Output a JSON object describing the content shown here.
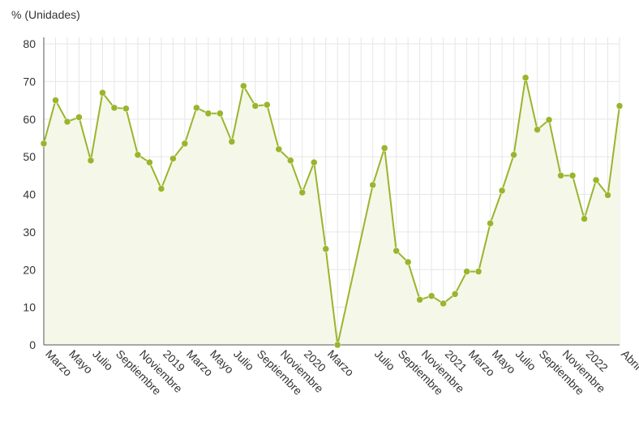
{
  "chart_data": {
    "type": "area",
    "title": "",
    "ylabel": "% (Unidades)",
    "xlabel": "",
    "ylim": [
      0,
      80
    ],
    "yticks": [
      0,
      10,
      20,
      30,
      40,
      50,
      60,
      70,
      80
    ],
    "grid": true,
    "legend": "none",
    "colors": {
      "line": "#99b52c",
      "point": "#99b52c",
      "fill": "#f5f7e9",
      "grid": "#e6e6e6",
      "axis": "#555555"
    },
    "x_ticks": [
      "Marzo",
      "Mayo",
      "Julio",
      "Septiembre",
      "Noviembre",
      "2019",
      "Marzo",
      "Mayo",
      "Julio",
      "Septiembre",
      "Noviembre",
      "2020",
      "Marzo",
      "Julio",
      "Septiembre",
      "Noviembre",
      "2021",
      "Marzo",
      "Mayo",
      "Julio",
      "Septiembre",
      "Noviembre",
      "2022",
      "Abril"
    ],
    "x_tick_positions": [
      0.5,
      2.5,
      4.5,
      6.5,
      8.5,
      10.5,
      12.5,
      14.5,
      16.5,
      18.5,
      20.5,
      22.5,
      24.5,
      28.5,
      30.5,
      32.5,
      34.5,
      36.5,
      38.5,
      40.5,
      42.5,
      44.5,
      46.5,
      49.5
    ],
    "x_count": 50,
    "series": [
      {
        "points": [
          [
            0,
            53.5
          ],
          [
            1,
            65
          ],
          [
            2,
            59.3
          ],
          [
            3,
            60.5
          ],
          [
            4,
            49
          ],
          [
            5,
            67
          ],
          [
            6,
            63
          ],
          [
            7,
            62.8
          ],
          [
            8,
            50.5
          ],
          [
            9,
            48.5
          ],
          [
            10,
            41.5
          ],
          [
            11,
            49.5
          ],
          [
            12,
            53.5
          ],
          [
            13,
            63
          ],
          [
            14,
            61.5
          ],
          [
            15,
            61.5
          ],
          [
            16,
            54
          ],
          [
            17,
            68.8
          ],
          [
            18,
            63.5
          ],
          [
            19,
            63.8
          ],
          [
            20,
            52
          ],
          [
            21,
            49
          ],
          [
            22,
            40.5
          ],
          [
            23,
            48.5
          ],
          [
            24,
            25.5
          ],
          [
            25,
            0
          ],
          [
            28,
            42.5
          ],
          [
            29,
            52.3
          ],
          [
            30,
            25
          ],
          [
            31,
            22
          ],
          [
            32,
            12
          ],
          [
            33,
            13
          ],
          [
            34,
            11
          ],
          [
            35,
            13.5
          ],
          [
            36,
            19.5
          ],
          [
            37,
            19.5
          ],
          [
            38,
            32.3
          ],
          [
            39,
            41
          ],
          [
            40,
            50.5
          ],
          [
            41,
            71
          ],
          [
            42,
            57.2
          ],
          [
            43,
            59.8
          ],
          [
            44,
            45
          ],
          [
            45,
            45
          ],
          [
            46,
            33.5
          ],
          [
            47,
            43.8
          ],
          [
            48,
            39.8
          ],
          [
            49,
            63.5
          ]
        ]
      }
    ]
  }
}
